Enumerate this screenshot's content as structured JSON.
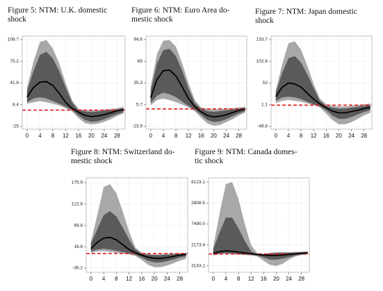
{
  "chart_data": [
    {
      "type": "line",
      "title": [
        "Figure 5: NTM: U.K. domestic",
        "shock"
      ],
      "x": [
        0,
        2,
        4,
        6,
        8,
        10,
        12,
        14,
        16,
        18,
        20,
        22,
        24,
        26,
        28,
        30
      ],
      "xlim": [
        -1.5,
        30.5
      ],
      "xticks": [
        0,
        4,
        8,
        12,
        16,
        20,
        24,
        28
      ],
      "ylim": [
        -29.3,
        114
      ],
      "yticks": [
        108.7,
        75.2,
        41.8,
        8.4,
        -25.0
      ],
      "grid": true,
      "bands": [
        {
          "color": "#a3a3a3",
          "upper": [
            35,
            75,
            105,
            108,
            95,
            72,
            42,
            15,
            2,
            0,
            0,
            0,
            1,
            2,
            3,
            5
          ],
          "lower": [
            10,
            12,
            14,
            12,
            10,
            7,
            3,
            -2,
            -12,
            -20,
            -22,
            -21,
            -18,
            -14,
            -9,
            -5
          ]
        },
        {
          "color": "#555555",
          "upper": [
            30,
            60,
            85,
            90,
            80,
            60,
            35,
            12,
            0,
            -2,
            -3,
            -2,
            -1,
            0,
            1,
            3
          ],
          "lower": [
            12,
            18,
            20,
            18,
            14,
            10,
            5,
            0,
            -8,
            -15,
            -18,
            -17,
            -14,
            -10,
            -6,
            -3
          ]
        }
      ],
      "line": {
        "color": "#000000",
        "values": [
          20,
          35,
          43,
          44,
          38,
          26,
          12,
          3,
          -3,
          -8,
          -10,
          -9,
          -7,
          -4,
          -1,
          1
        ]
      },
      "hline": {
        "value": 0,
        "color": "#e31a1c"
      }
    },
    {
      "type": "line",
      "title": [
        "Figure 6: NTM: Euro Area do-",
        "mestic shock"
      ],
      "x": [
        0,
        2,
        4,
        6,
        8,
        10,
        12,
        14,
        16,
        18,
        20,
        22,
        24,
        26,
        28,
        30
      ],
      "xlim": [
        -1.5,
        30.5
      ],
      "xticks": [
        0,
        4,
        8,
        12,
        16,
        20,
        24,
        28
      ],
      "ylim": [
        -27.7,
        99.3
      ],
      "yticks": [
        94.6,
        65.0,
        35.3,
        5.7,
        -23.9
      ],
      "grid": true,
      "bands": [
        {
          "color": "#a3a3a3",
          "upper": [
            30,
            75,
            93,
            94,
            85,
            62,
            35,
            12,
            2,
            0,
            -1,
            0,
            0,
            1,
            2,
            3
          ],
          "lower": [
            5,
            12,
            14,
            12,
            9,
            6,
            2,
            -3,
            -12,
            -20,
            -23,
            -22,
            -18,
            -14,
            -9,
            -5
          ]
        },
        {
          "color": "#555555",
          "upper": [
            25,
            62,
            80,
            82,
            72,
            52,
            28,
            8,
            0,
            -3,
            -4,
            -3,
            -2,
            -1,
            0,
            1
          ],
          "lower": [
            8,
            18,
            22,
            20,
            16,
            10,
            4,
            -1,
            -8,
            -15,
            -18,
            -17,
            -14,
            -10,
            -6,
            -3
          ]
        }
      ],
      "line": {
        "color": "#000000",
        "values": [
          15,
          40,
          52,
          53,
          45,
          30,
          14,
          3,
          -4,
          -9,
          -11,
          -10,
          -8,
          -5,
          -2,
          0
        ]
      },
      "hline": {
        "value": 0,
        "color": "#e31a1c"
      }
    },
    {
      "type": "line",
      "title": [
        "Figure 7: NTM: Japan domestic",
        "shock"
      ],
      "x": [
        0,
        2,
        4,
        6,
        8,
        10,
        12,
        14,
        16,
        18,
        20,
        22,
        24,
        26,
        28,
        30
      ],
      "xlim": [
        -1.5,
        30.5
      ],
      "xticks": [
        0,
        4,
        8,
        12,
        16,
        20,
        24,
        28
      ],
      "ylim": [
        -56.3,
        161.8
      ],
      "yticks": [
        153.7,
        102.8,
        52.0,
        1.1,
        -49.8
      ],
      "grid": true,
      "bands": [
        {
          "color": "#a3a3a3",
          "upper": [
            35,
            95,
            145,
            150,
            130,
            92,
            50,
            15,
            2,
            -2,
            -3,
            -3,
            -2,
            0,
            2,
            4
          ],
          "lower": [
            5,
            10,
            12,
            10,
            8,
            4,
            0,
            -5,
            -20,
            -35,
            -45,
            -45,
            -40,
            -32,
            -24,
            -18
          ]
        },
        {
          "color": "#555555",
          "upper": [
            30,
            75,
            110,
            115,
            100,
            72,
            40,
            10,
            -2,
            -6,
            -8,
            -8,
            -6,
            -4,
            -2,
            0
          ],
          "lower": [
            10,
            18,
            20,
            18,
            14,
            8,
            2,
            -3,
            -12,
            -25,
            -32,
            -32,
            -28,
            -22,
            -16,
            -12
          ]
        }
      ],
      "line": {
        "color": "#000000",
        "values": [
          20,
          42,
          52,
          50,
          42,
          28,
          14,
          3,
          -6,
          -14,
          -18,
          -18,
          -15,
          -12,
          -8,
          -5
        ]
      },
      "hline": {
        "value": 0,
        "color": "#e31a1c"
      }
    },
    {
      "type": "line",
      "title": [
        "Figure 8: NTM: Switzerland do-",
        "mestic shock"
      ],
      "x": [
        0,
        2,
        4,
        6,
        8,
        10,
        12,
        14,
        16,
        18,
        20,
        22,
        24,
        26,
        28,
        30
      ],
      "xlim": [
        -1.5,
        30.5
      ],
      "xticks": [
        0,
        4,
        8,
        12,
        16,
        20,
        24,
        28
      ],
      "ylim": [
        -46.5,
        188
      ],
      "yticks": [
        175.9,
        122.8,
        69.8,
        16.8,
        -36.2
      ],
      "grid": true,
      "bands": [
        {
          "color": "#a3a3a3",
          "upper": [
            30,
            95,
            165,
            172,
            150,
            105,
            55,
            15,
            2,
            -1,
            -2,
            -2,
            -1,
            0,
            1,
            2
          ],
          "lower": [
            2,
            5,
            6,
            4,
            2,
            0,
            -2,
            -6,
            -16,
            -28,
            -34,
            -34,
            -30,
            -24,
            -18,
            -13
          ]
        },
        {
          "color": "#555555",
          "upper": [
            25,
            60,
            95,
            105,
            92,
            65,
            35,
            10,
            0,
            -3,
            -4,
            -4,
            -3,
            -2,
            -1,
            0
          ],
          "lower": [
            5,
            10,
            12,
            10,
            7,
            4,
            1,
            -3,
            -10,
            -18,
            -22,
            -22,
            -19,
            -15,
            -10,
            -7
          ]
        }
      ],
      "line": {
        "color": "#000000",
        "values": [
          12,
          28,
          38,
          40,
          34,
          22,
          10,
          2,
          -4,
          -9,
          -12,
          -12,
          -10,
          -7,
          -4,
          -2
        ]
      },
      "hline": {
        "value": 0,
        "color": "#e31a1c"
      }
    },
    {
      "type": "line",
      "title": [
        "Figure 9: NTM: Canada domes-",
        "tic shock"
      ],
      "x": [
        0,
        2,
        4,
        6,
        8,
        10,
        12,
        14,
        16,
        18,
        20,
        22,
        24,
        26,
        28,
        30
      ],
      "xlim": [
        -1.5,
        30.5
      ],
      "xticks": [
        0,
        4,
        8,
        12,
        16,
        20,
        24,
        28
      ],
      "ylim": [
        -0.3,
        4.2
      ],
      "yticks": [
        {
          "value": 4,
          "label": "8123.1"
        },
        {
          "value": 3,
          "label": "2808.5"
        },
        {
          "value": 2,
          "label": "7490.0"
        },
        {
          "value": 1,
          "label": "2173.4"
        },
        {
          "value": 0,
          "label": "3143.1"
        }
      ],
      "grid": true,
      "bands": [
        {
          "color": "#a3a3a3",
          "upper": [
            0.9,
            2.5,
            3.9,
            4.0,
            3.2,
            2.0,
            1.0,
            0.6,
            0.58,
            0.62,
            0.65,
            0.66,
            0.66,
            0.67,
            0.68,
            0.7
          ],
          "lower": [
            0.5,
            0.55,
            0.58,
            0.56,
            0.54,
            0.52,
            0.5,
            0.45,
            0.25,
            0.05,
            0.0,
            0.1,
            0.3,
            0.45,
            0.52,
            0.56
          ]
        },
        {
          "color": "#555555",
          "upper": [
            0.8,
            1.6,
            2.3,
            2.3,
            1.8,
            1.2,
            0.7,
            0.55,
            0.55,
            0.6,
            0.62,
            0.62,
            0.62,
            0.63,
            0.65,
            0.66
          ],
          "lower": [
            0.55,
            0.6,
            0.62,
            0.6,
            0.58,
            0.56,
            0.54,
            0.5,
            0.4,
            0.3,
            0.3,
            0.35,
            0.42,
            0.5,
            0.55,
            0.58
          ]
        }
      ],
      "line": {
        "color": "#000000",
        "values": [
          0.6,
          0.68,
          0.72,
          0.7,
          0.66,
          0.62,
          0.58,
          0.55,
          0.52,
          0.5,
          0.5,
          0.52,
          0.55,
          0.58,
          0.6,
          0.62
        ]
      },
      "hline": {
        "value": 0.57,
        "color": "#e31a1c"
      }
    }
  ]
}
